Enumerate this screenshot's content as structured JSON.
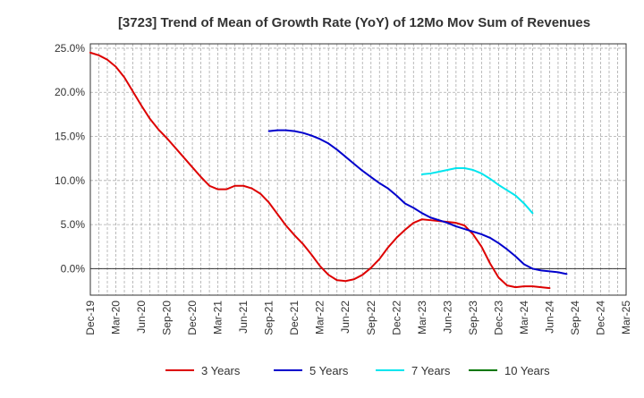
{
  "chart_data": {
    "type": "line",
    "title": "[3723]  Trend of Mean of Growth Rate (YoY) of 12Mo Mov Sum of Revenues",
    "xlabel": "",
    "ylabel": "",
    "ylim": [
      -3.0,
      25.5
    ],
    "y_ticks": [
      0,
      5,
      10,
      15,
      20,
      25
    ],
    "y_tick_labels": [
      "0.0%",
      "5.0%",
      "10.0%",
      "15.0%",
      "20.0%",
      "25.0%"
    ],
    "x_tick_labels": [
      "Dec-19",
      "Mar-20",
      "Jun-20",
      "Sep-20",
      "Dec-20",
      "Mar-21",
      "Jun-21",
      "Sep-21",
      "Dec-21",
      "Mar-22",
      "Jun-22",
      "Sep-22",
      "Dec-22",
      "Mar-23",
      "Jun-23",
      "Sep-23",
      "Dec-23",
      "Mar-24",
      "Jun-24",
      "Sep-24",
      "Dec-24",
      "Mar-25"
    ],
    "grid": true,
    "legend_position": "bottom",
    "series": [
      {
        "name": "3 Years",
        "color": "#dd0000",
        "start_index": 0,
        "values": [
          24.5,
          24.2,
          23.7,
          22.9,
          21.7,
          20.1,
          18.5,
          17.0,
          15.8,
          14.8,
          13.7,
          12.6,
          11.5,
          10.4,
          9.4,
          9.0,
          9.0,
          9.4,
          9.4,
          9.1,
          8.5,
          7.5,
          6.2,
          4.9,
          3.8,
          2.8,
          1.6,
          0.3,
          -0.7,
          -1.3,
          -1.4,
          -1.2,
          -0.7,
          0.1,
          1.1,
          2.4,
          3.5,
          4.4,
          5.2,
          5.6,
          5.5,
          5.4,
          5.3,
          5.2,
          4.9,
          3.9,
          2.5,
          0.6,
          -1.0,
          -1.9,
          -2.1,
          -2.0,
          -2.0,
          -2.1,
          -2.2
        ]
      },
      {
        "name": "5 Years",
        "color": "#0000cc",
        "start_index": 21,
        "values": [
          15.6,
          15.7,
          15.7,
          15.6,
          15.4,
          15.1,
          14.7,
          14.2,
          13.5,
          12.7,
          11.9,
          11.1,
          10.4,
          9.7,
          9.1,
          8.3,
          7.4,
          6.9,
          6.3,
          5.8,
          5.5,
          5.2,
          4.8,
          4.5,
          4.2,
          3.9,
          3.5,
          2.9,
          2.2,
          1.4,
          0.5,
          0.0,
          -0.2,
          -0.3,
          -0.4,
          -0.6
        ]
      },
      {
        "name": "7 Years",
        "color": "#00e5ee",
        "start_index": 39,
        "values": [
          10.7,
          10.8,
          11.0,
          11.2,
          11.4,
          11.4,
          11.2,
          10.8,
          10.2,
          9.5,
          8.9,
          8.3,
          7.4,
          6.3
        ]
      },
      {
        "name": "10 Years",
        "color": "#007700",
        "start_index": 0,
        "values": []
      }
    ]
  }
}
